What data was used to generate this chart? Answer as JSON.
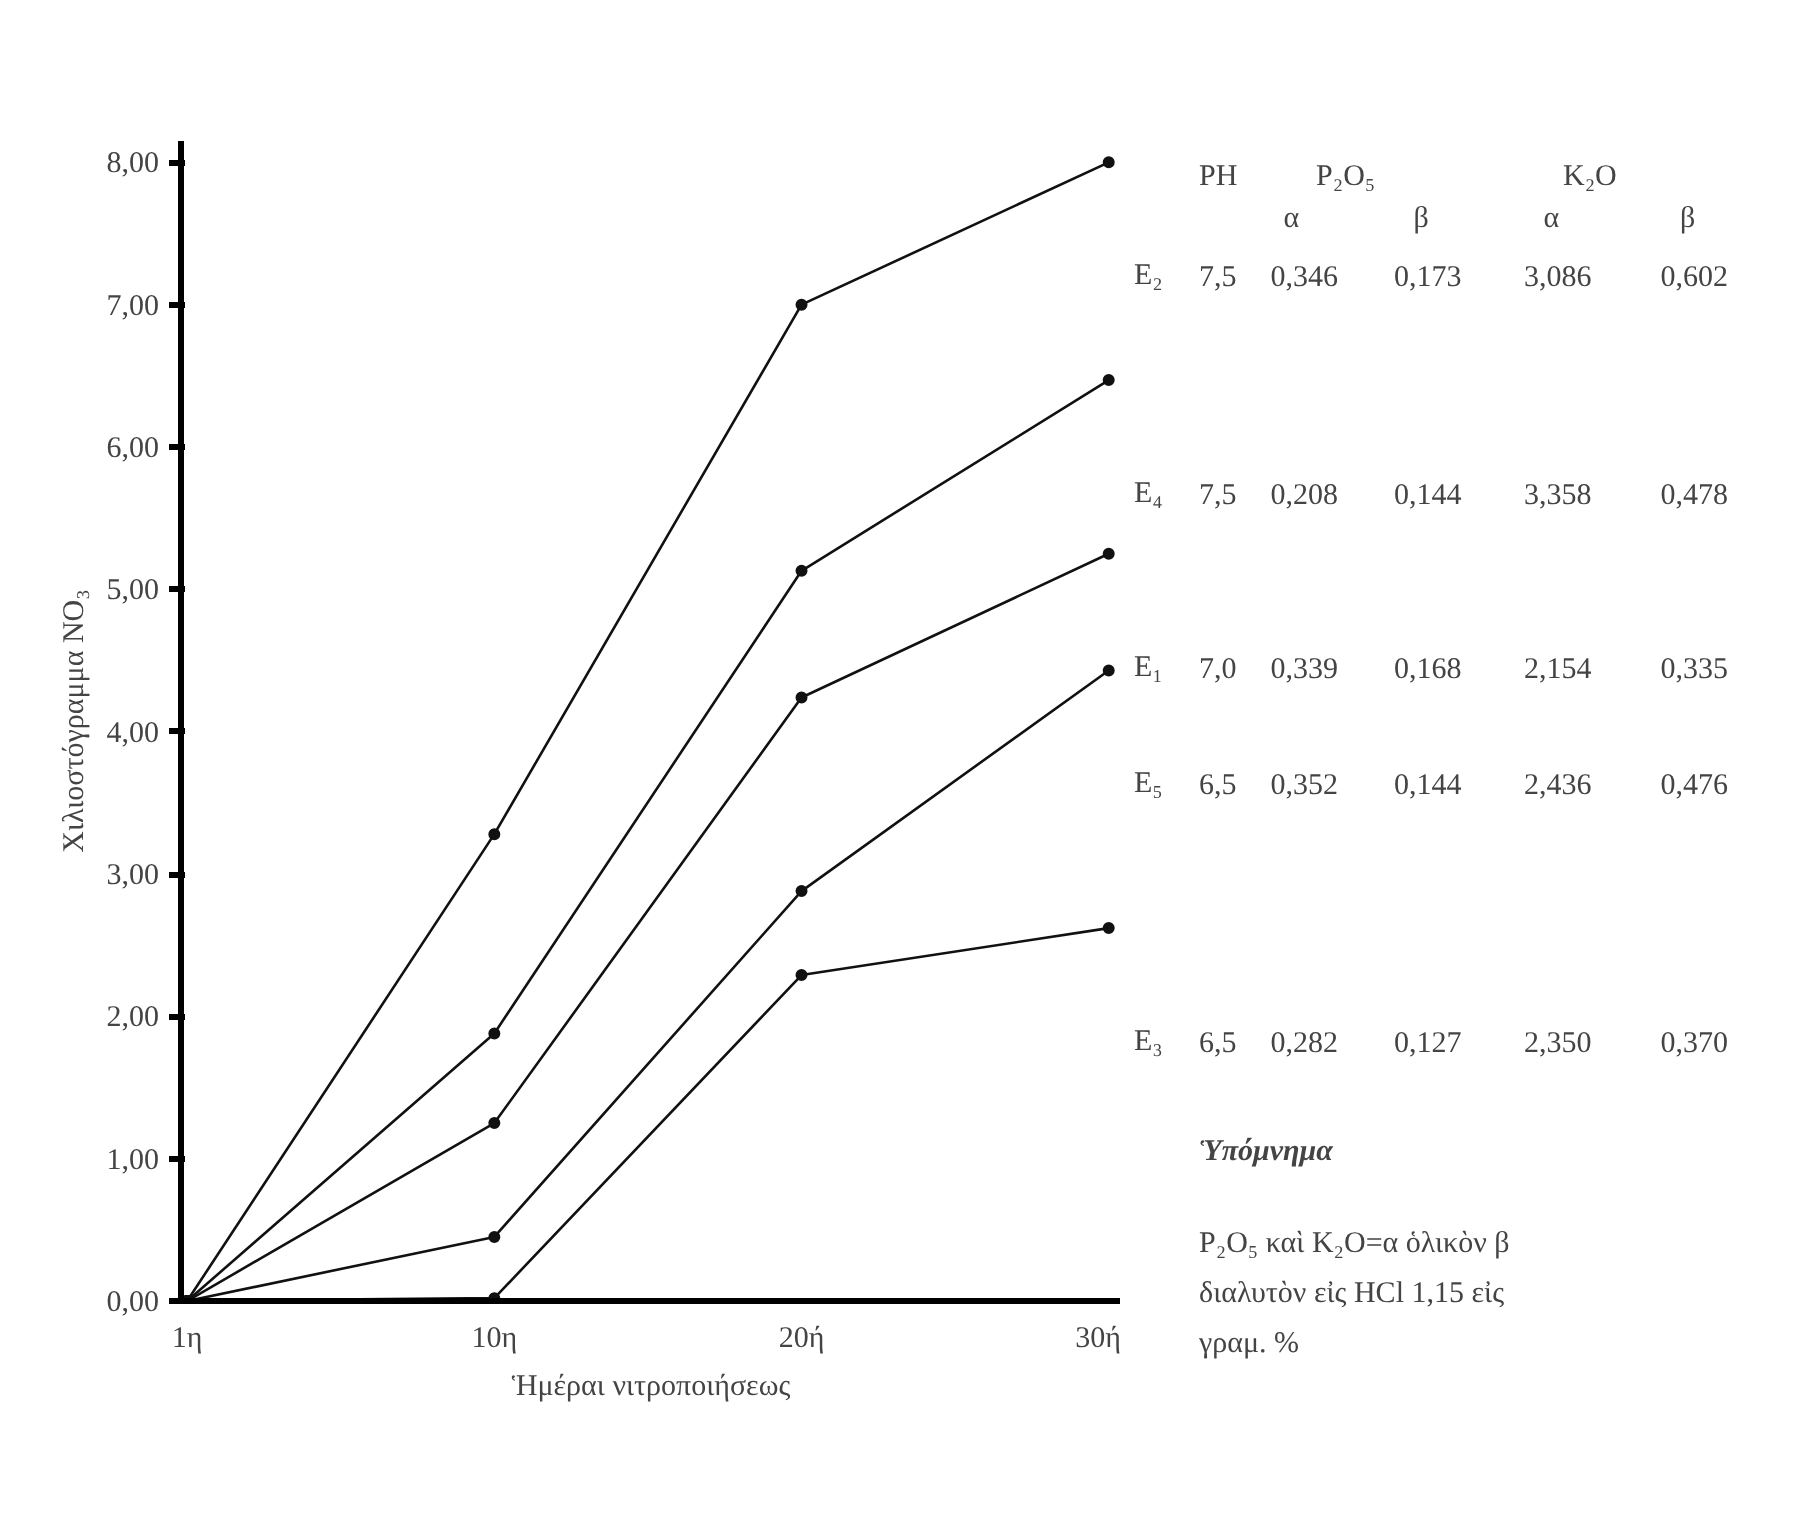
{
  "chart_data": {
    "type": "line",
    "xlabel": "Ἡμέραι νιτροποιήσεως",
    "ylabel": "Χιλιοστόγραμμα NO₃",
    "categories": [
      "1η",
      "10η",
      "20ή",
      "30ή"
    ],
    "series": [
      {
        "name": "E₂",
        "color": "#111111",
        "values": [
          0,
          3.28,
          7.0,
          8.0
        ]
      },
      {
        "name": "E₄",
        "color": "#111111",
        "values": [
          0,
          1.88,
          5.13,
          6.47
        ]
      },
      {
        "name": "E₁",
        "color": "#111111",
        "values": [
          0,
          1.25,
          4.24,
          5.25
        ]
      },
      {
        "name": "E₅",
        "color": "#111111",
        "values": [
          0,
          0.45,
          2.88,
          4.43
        ]
      },
      {
        "name": "E₃",
        "color": "#111111",
        "values": [
          0,
          0.02,
          2.29,
          2.62
        ]
      }
    ],
    "ylim": [
      0,
      8.15
    ],
    "yticks": [
      {
        "value": 0,
        "label": "0,00"
      },
      {
        "value": 1,
        "label": "1,00"
      },
      {
        "value": 2,
        "label": "2,00"
      },
      {
        "value": 3,
        "label": "3,00"
      },
      {
        "value": 4,
        "label": "4,00"
      },
      {
        "value": 5,
        "label": "5,00"
      },
      {
        "value": 6,
        "label": "6,00"
      },
      {
        "value": 7,
        "label": "7,00"
      },
      {
        "value": 8,
        "label": "8,00"
      }
    ],
    "annotations": [
      "PH",
      "P₂O₅",
      "K₂O",
      "α",
      "β",
      "α",
      "β",
      "7,5 0,346 0,173 3,086 0,602",
      "7,5 0,208 0,144 3,358 0,478",
      "7,0 0,339 0,168 2,154 0,335",
      "6,5 0,352 0,144 2,436 0,476",
      "6,5 0,282 0,127 2,350 0,370",
      "Ὑπόμνημα",
      "P₂O₅ καὶ K₂O=α ὁλικὸν β διαλυτὸν εἰς HCl 1,15 εἰς γραμ. %"
    ],
    "grid": false,
    "marker": "circle",
    "line_style": "solid"
  }
}
